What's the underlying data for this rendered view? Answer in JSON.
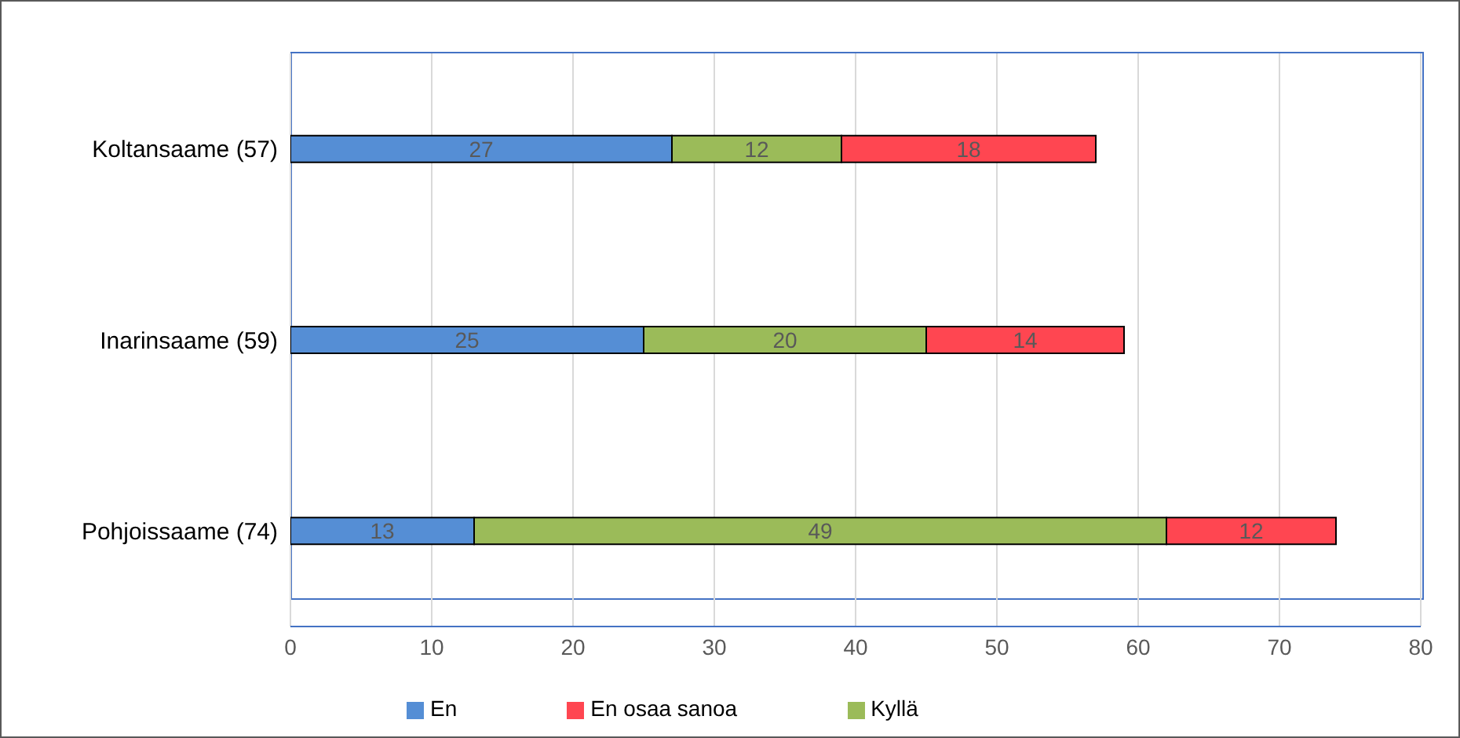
{
  "chart_data": {
    "type": "bar",
    "orientation": "horizontal",
    "stacked": true,
    "categories": [
      "Koltansaame (57)",
      "Inarinsaame (59)",
      "Pohjoissaame (74)"
    ],
    "series": [
      {
        "name": "En",
        "color": "#558ed5",
        "values": [
          27,
          25,
          13
        ]
      },
      {
        "name": "Kyllä",
        "color": "#9bbb59",
        "values": [
          12,
          20,
          49
        ]
      },
      {
        "name": "En osaa sanoa",
        "color": "#ff4651",
        "values": [
          18,
          14,
          12
        ]
      }
    ],
    "xlim": [
      0,
      80
    ],
    "xticks": [
      0,
      10,
      20,
      30,
      40,
      50,
      60,
      70,
      80
    ],
    "grid": "x",
    "legend": "bottom",
    "data_labels": true
  }
}
